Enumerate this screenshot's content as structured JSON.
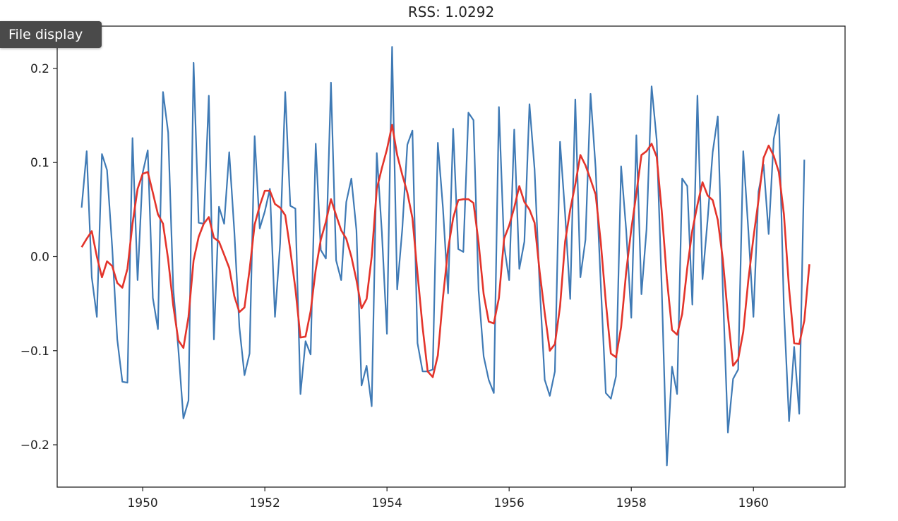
{
  "tooltip": {
    "label": "File display"
  },
  "colors": {
    "series_original": "#3f7ab5",
    "series_fitted": "#e3342b"
  },
  "chart_data": {
    "type": "line",
    "title": "RSS: 1.0292",
    "xlabel": "",
    "ylabel": "",
    "xlim": [
      1948.6,
      1961.5
    ],
    "ylim": [
      -0.245,
      0.245
    ],
    "xticks": [
      1950,
      1952,
      1954,
      1956,
      1958,
      1960
    ],
    "xtick_labels": [
      "1950",
      "1952",
      "1954",
      "1956",
      "1958",
      "1960"
    ],
    "yticks": [
      0.2,
      0.1,
      0.0,
      -0.1,
      -0.2
    ],
    "ytick_labels": [
      "0.2",
      "0.1",
      "0.0",
      "−0.1",
      "−0.2"
    ],
    "grid": false,
    "x_start": 1949.0,
    "x_step": 0.08333,
    "series": [
      {
        "values": [
          0.052,
          0.112,
          -0.022,
          -0.064,
          0.109,
          0.092,
          0.01,
          -0.088,
          -0.133,
          -0.134,
          0.126,
          -0.025,
          0.089,
          0.113,
          -0.044,
          -0.077,
          0.175,
          0.132,
          -0.034,
          -0.098,
          -0.172,
          -0.153,
          0.206,
          0.036,
          0.035,
          0.171,
          -0.088,
          0.053,
          0.035,
          0.111,
          0.027,
          -0.075,
          -0.126,
          -0.103,
          0.128,
          0.03,
          0.048,
          0.072,
          -0.064,
          0.014,
          0.175,
          0.054,
          0.051,
          -0.146,
          -0.09,
          -0.104,
          0.12,
          0.007,
          -0.002,
          0.185,
          -0.004,
          -0.025,
          0.058,
          0.083,
          0.028,
          -0.137,
          -0.116,
          -0.159,
          0.11,
          0.026,
          -0.082,
          0.223,
          -0.035,
          0.029,
          0.119,
          0.134,
          -0.092,
          -0.122,
          -0.122,
          -0.12,
          0.121,
          0.052,
          -0.039,
          0.136,
          0.008,
          0.005,
          0.153,
          0.145,
          -0.036,
          -0.106,
          -0.131,
          -0.145,
          0.159,
          0.012,
          -0.025,
          0.135,
          -0.013,
          0.016,
          0.162,
          0.093,
          -0.031,
          -0.131,
          -0.148,
          -0.122,
          0.122,
          0.045,
          -0.045,
          0.167,
          -0.022,
          0.018,
          0.173,
          0.094,
          -0.028,
          -0.145,
          -0.151,
          -0.127,
          0.096,
          0.028,
          -0.065,
          0.129,
          -0.04,
          0.029,
          0.181,
          0.124,
          -0.035,
          -0.222,
          -0.117,
          -0.146,
          0.083,
          0.075,
          -0.051,
          0.171,
          -0.024,
          0.039,
          0.111,
          0.149,
          -0.036,
          -0.187,
          -0.13,
          -0.12,
          0.112,
          0.028,
          -0.064,
          0.069,
          0.098,
          0.024,
          0.125,
          0.151,
          -0.056,
          -0.175,
          -0.096,
          -0.167,
          0.103
        ]
      },
      {
        "values": [
          0.01,
          0.019,
          0.027,
          0.0,
          -0.022,
          -0.005,
          -0.01,
          -0.028,
          -0.033,
          -0.013,
          0.035,
          0.072,
          0.088,
          0.09,
          0.068,
          0.045,
          0.035,
          -0.003,
          -0.052,
          -0.089,
          -0.097,
          -0.064,
          -0.004,
          0.021,
          0.035,
          0.042,
          0.02,
          0.016,
          0.002,
          -0.012,
          -0.042,
          -0.059,
          -0.054,
          -0.014,
          0.034,
          0.054,
          0.07,
          0.07,
          0.056,
          0.052,
          0.044,
          0.007,
          -0.034,
          -0.086,
          -0.085,
          -0.058,
          -0.014,
          0.018,
          0.037,
          0.061,
          0.044,
          0.028,
          0.019,
          0.0,
          -0.025,
          -0.055,
          -0.045,
          0.0,
          0.072,
          0.094,
          0.114,
          0.14,
          0.108,
          0.087,
          0.068,
          0.041,
          -0.018,
          -0.075,
          -0.122,
          -0.128,
          -0.105,
          -0.044,
          0.008,
          0.041,
          0.06,
          0.061,
          0.061,
          0.057,
          0.015,
          -0.04,
          -0.069,
          -0.071,
          -0.044,
          0.019,
          0.033,
          0.052,
          0.075,
          0.058,
          0.05,
          0.036,
          -0.016,
          -0.06,
          -0.1,
          -0.093,
          -0.053,
          0.016,
          0.05,
          0.077,
          0.108,
          0.097,
          0.082,
          0.066,
          0.016,
          -0.048,
          -0.103,
          -0.107,
          -0.075,
          -0.016,
          0.029,
          0.067,
          0.108,
          0.112,
          0.12,
          0.106,
          0.048,
          -0.023,
          -0.078,
          -0.083,
          -0.061,
          -0.012,
          0.028,
          0.055,
          0.079,
          0.065,
          0.06,
          0.039,
          -0.003,
          -0.063,
          -0.116,
          -0.109,
          -0.08,
          -0.025,
          0.02,
          0.06,
          0.105,
          0.118,
          0.107,
          0.09,
          0.045,
          -0.034,
          -0.092,
          -0.093,
          -0.068,
          -0.008
        ]
      }
    ]
  }
}
